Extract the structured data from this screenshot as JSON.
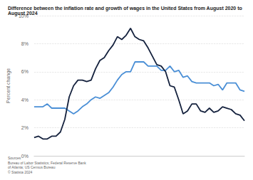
{
  "chart_data": {
    "type": "line",
    "title": "Difference between the inflation rate and growth of wages in the United States from August 2020 to August 2024",
    "y_label": "Percent change",
    "source": "Sources\nBureau of Labor Statistics; Federal Reserve Bank\nof Atlanta; US Census Bureau\n© Statista 2024",
    "categories": [
      null,
      null,
      null,
      null,
      null,
      null,
      null,
      null,
      null,
      null,
      null,
      null,
      null,
      null,
      null,
      null,
      null,
      null,
      null,
      null,
      null,
      null,
      null,
      null,
      null,
      null,
      null,
      null,
      null,
      null,
      null,
      null,
      null,
      null,
      null,
      null,
      null,
      null,
      null,
      null,
      null,
      null,
      null,
      null,
      null,
      null,
      null,
      null,
      null
    ],
    "series": [
      {
        "color": "#4a8fd6",
        "marker": "none",
        "line_style": "solid",
        "values": [
          3.5,
          3.5,
          3.5,
          3.7,
          3.4,
          3.4,
          3.4,
          3.4,
          3.2,
          3.0,
          3.2,
          3.5,
          3.7,
          4.0,
          4.2,
          4.1,
          4.3,
          4.5,
          4.9,
          5.4,
          5.8,
          6.0,
          6.0,
          6.7,
          6.7,
          6.7,
          6.4,
          6.4,
          6.4,
          6.1,
          6.1,
          6.4,
          6.0,
          6.1,
          5.6,
          5.7,
          5.3,
          5.2,
          5.2,
          5.2,
          5.2,
          5.0,
          5.1,
          4.7,
          5.2,
          5.2,
          5.2,
          4.7,
          4.6
        ]
      },
      {
        "color": "#14213d",
        "marker": "none",
        "line_style": "solid",
        "values": [
          1.3,
          1.4,
          1.2,
          1.2,
          1.4,
          1.4,
          1.7,
          2.6,
          4.2,
          5.0,
          5.4,
          5.4,
          5.3,
          5.4,
          6.2,
          6.8,
          7.0,
          7.5,
          7.9,
          8.5,
          8.3,
          8.6,
          9.1,
          8.5,
          8.3,
          8.2,
          7.7,
          7.1,
          6.5,
          6.4,
          6.0,
          5.0,
          4.9,
          4.0,
          3.0,
          3.2,
          3.7,
          3.7,
          3.2,
          3.1,
          3.4,
          3.1,
          3.2,
          3.5,
          3.4,
          3.3,
          3.0,
          2.9,
          2.5
        ]
      }
    ],
    "ylim": [
      0,
      10
    ],
    "yticks": [
      {
        "value": 0,
        "label": "0%"
      },
      {
        "value": 2,
        "label": "2%"
      },
      {
        "value": 4,
        "label": "4%"
      },
      {
        "value": 6,
        "label": "6%"
      },
      {
        "value": 8,
        "label": "8%"
      },
      {
        "value": 10,
        "label": "10%"
      }
    ],
    "grid": true,
    "tick_labels": "y"
  }
}
